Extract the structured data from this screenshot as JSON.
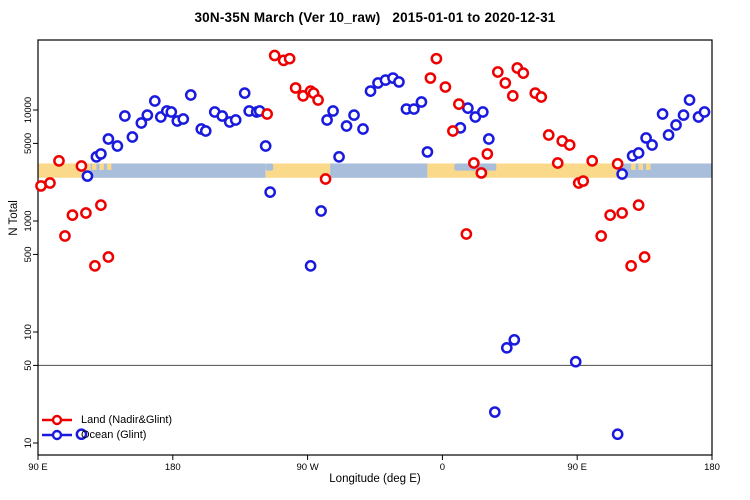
{
  "title": "30N-35N March (Ver 10_raw)   2015-01-01 to 2020-12-31",
  "chart_data": {
    "type": "scatter",
    "xlabel": "Longitude (deg E)",
    "ylabel": "N Total",
    "x_axis": {
      "range_deg": [
        90,
        540
      ],
      "ticks_deg": [
        90,
        180,
        270,
        360,
        450,
        540
      ],
      "tick_labels": [
        "90 E",
        "180",
        "90 W",
        "0",
        "90 E",
        "180"
      ]
    },
    "y_axis": {
      "scale": "log",
      "range": [
        7.5,
        43000
      ],
      "ticks": [
        10000,
        5000,
        1000,
        500,
        100,
        50,
        10
      ],
      "tick_labels": [
        "10000",
        "5000",
        "1000",
        "500",
        "100",
        "50",
        "10"
      ]
    },
    "reference_line_y": 50,
    "colors": {
      "land": "#ee0000",
      "ocean": "#1a1adf",
      "strip_land": "#fbd98a",
      "strip_ocean": "#a9bedb",
      "reference_line": "#4d4d4d"
    },
    "land_ocean_strip": {
      "top_value": 3300,
      "bottom_value": 2450,
      "ocean_segments_deg": [
        [
          125,
          242
        ],
        [
          285,
          350
        ],
        [
          477,
          540
        ]
      ],
      "land_segments_deg": [
        [
          90,
          125
        ],
        [
          242,
          285
        ],
        [
          350,
          477
        ]
      ],
      "ocean_top_notches_deg": [
        [
          368,
          396
        ],
        [
          242,
          247
        ]
      ],
      "land_top_specks_deg": [
        [
          126,
          129
        ],
        [
          131,
          134
        ],
        [
          136,
          139
        ],
        [
          486,
          489
        ],
        [
          491,
          494
        ],
        [
          496,
          499
        ]
      ]
    },
    "legend": [
      {
        "key": "land",
        "label": "Land (Nadir&Glint)",
        "color": "#ee0000"
      },
      {
        "key": "ocean",
        "label": "Ocean (Glint)",
        "color": "#1a1adf"
      }
    ],
    "series": [
      {
        "key": "land",
        "name": "Land (Nadir&Glint)",
        "color": "#ee0000",
        "points": [
          [
            92,
            2070
          ],
          [
            98,
            2200
          ],
          [
            104,
            3480
          ],
          [
            108,
            733
          ],
          [
            113,
            1130
          ],
          [
            119,
            3130
          ],
          [
            122,
            1180
          ],
          [
            128,
            394
          ],
          [
            132,
            1390
          ],
          [
            137,
            474
          ],
          [
            243,
            9200
          ],
          [
            248,
            31000
          ],
          [
            254,
            28000
          ],
          [
            258,
            29000
          ],
          [
            262,
            15800
          ],
          [
            267,
            13400
          ],
          [
            272,
            14800
          ],
          [
            274,
            14200
          ],
          [
            277,
            12300
          ],
          [
            282,
            2390
          ],
          [
            352,
            19400
          ],
          [
            356,
            29000
          ],
          [
            362,
            16100
          ],
          [
            367,
            6470
          ],
          [
            371,
            11300
          ],
          [
            376,
            764
          ],
          [
            381,
            3330
          ],
          [
            386,
            2710
          ],
          [
            390,
            4020
          ],
          [
            397,
            22000
          ],
          [
            402,
            17500
          ],
          [
            407,
            13400
          ],
          [
            410,
            23900
          ],
          [
            414,
            21500
          ],
          [
            422,
            14200
          ],
          [
            426,
            13100
          ],
          [
            431,
            5950
          ],
          [
            437,
            3330
          ],
          [
            440,
            5260
          ],
          [
            445,
            4840
          ],
          [
            451,
            2200
          ],
          [
            454,
            2290
          ],
          [
            460,
            3480
          ],
          [
            466,
            733
          ],
          [
            472,
            1130
          ],
          [
            477,
            3270
          ],
          [
            480,
            1180
          ],
          [
            486,
            394
          ],
          [
            491,
            1390
          ],
          [
            495,
            474
          ]
        ]
      },
      {
        "key": "ocean",
        "name": "Ocean (Glint)",
        "color": "#1a1adf",
        "points": [
          [
            119,
            12
          ],
          [
            123,
            2540
          ],
          [
            129,
            3780
          ],
          [
            132,
            4020
          ],
          [
            137,
            5480
          ],
          [
            143,
            4740
          ],
          [
            148,
            8830
          ],
          [
            153,
            5710
          ],
          [
            159,
            7640
          ],
          [
            163,
            9000
          ],
          [
            168,
            12050
          ],
          [
            172,
            8650
          ],
          [
            176,
            9800
          ],
          [
            179,
            9600
          ],
          [
            183,
            7960
          ],
          [
            187,
            8300
          ],
          [
            192,
            13650
          ],
          [
            199,
            6740
          ],
          [
            202,
            6470
          ],
          [
            208,
            9600
          ],
          [
            213,
            8830
          ],
          [
            218,
            7800
          ],
          [
            222,
            8130
          ],
          [
            228,
            14200
          ],
          [
            231,
            9800
          ],
          [
            236,
            9600
          ],
          [
            238,
            9800
          ],
          [
            242,
            4740
          ],
          [
            245,
            1820
          ],
          [
            272,
            394
          ],
          [
            279,
            1230
          ],
          [
            283,
            8130
          ],
          [
            287,
            9800
          ],
          [
            291,
            3780
          ],
          [
            296,
            7180
          ],
          [
            301,
            9000
          ],
          [
            307,
            6740
          ],
          [
            312,
            14800
          ],
          [
            317,
            17500
          ],
          [
            322,
            18600
          ],
          [
            327,
            19400
          ],
          [
            331,
            17900
          ],
          [
            336,
            10200
          ],
          [
            341,
            10200
          ],
          [
            346,
            11800
          ],
          [
            350,
            4190
          ],
          [
            372,
            6900
          ],
          [
            377,
            10400
          ],
          [
            382,
            8650
          ],
          [
            387,
            9600
          ],
          [
            391,
            5480
          ],
          [
            395,
            19
          ],
          [
            403,
            72
          ],
          [
            408,
            85
          ],
          [
            449,
            54
          ],
          [
            477,
            12
          ],
          [
            480,
            2650
          ],
          [
            487,
            3860
          ],
          [
            491,
            4100
          ],
          [
            496,
            5600
          ],
          [
            500,
            4840
          ],
          [
            507,
            9200
          ],
          [
            511,
            5950
          ],
          [
            516,
            7330
          ],
          [
            521,
            9000
          ],
          [
            525,
            12300
          ],
          [
            531,
            8650
          ],
          [
            535,
            9600
          ]
        ]
      }
    ]
  }
}
